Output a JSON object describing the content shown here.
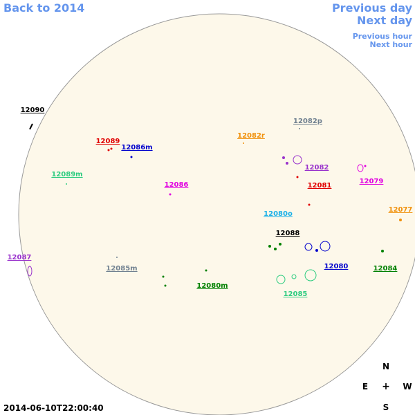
{
  "nav": {
    "back": "Back to 2014",
    "previous_day": "Previous day",
    "next_day": "Next day",
    "previous_hour": "Previous hour",
    "next_hour": "Next hour"
  },
  "timestamp": "2014-06-10T22:00:40",
  "compass": {
    "north": "N",
    "east": "E",
    "center": "+",
    "west": "W",
    "south": "S"
  },
  "regions": [
    {
      "label": "12090",
      "color": "#000000"
    },
    {
      "label": "12089",
      "color": "#e00000"
    },
    {
      "label": "12086m",
      "color": "#0000cc"
    },
    {
      "label": "12082r",
      "color": "#f0900a"
    },
    {
      "label": "12082p",
      "color": "#708090"
    },
    {
      "label": "12082",
      "color": "#9932cc"
    },
    {
      "label": "12081",
      "color": "#e00000"
    },
    {
      "label": "12079",
      "color": "#e000e0"
    },
    {
      "label": "12089m",
      "color": "#2ecc80"
    },
    {
      "label": "12086",
      "color": "#e000e0"
    },
    {
      "label": "12077",
      "color": "#f0900a"
    },
    {
      "label": "12080o",
      "color": "#1ab0e8"
    },
    {
      "label": "12088",
      "color": "#000000"
    },
    {
      "label": "12087",
      "color": "#9932cc"
    },
    {
      "label": "12085m",
      "color": "#708090"
    },
    {
      "label": "12080",
      "color": "#0000cc"
    },
    {
      "label": "12084",
      "color": "#008000"
    },
    {
      "label": "12080m",
      "color": "#008000"
    },
    {
      "label": "12085",
      "color": "#2ecc80"
    }
  ]
}
